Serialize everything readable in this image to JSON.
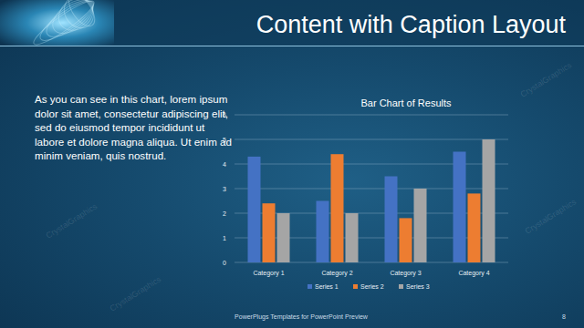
{
  "slide": {
    "title": "Content with Caption Layout",
    "caption": "As you can see in this chart, lorem ipsum dolor sit amet, consectetur adipiscing elit, sed do eiusmod tempor incididunt ut labore et dolore magna aliqua. Ut enim ad minim veniam, quis nostrud.",
    "footer": "PowerPlugs Templates for PowerPoint Preview",
    "page": 8,
    "watermark": "CrystalGraphics"
  },
  "chart_data": {
    "type": "bar",
    "title": "Bar Chart of Results",
    "categories": [
      "Category 1",
      "Category 2",
      "Category 3",
      "Category 4"
    ],
    "series": [
      {
        "name": "Series 1",
        "color": "#4472c4",
        "values": [
          4.3,
          2.5,
          3.5,
          4.5
        ]
      },
      {
        "name": "Series 2",
        "color": "#ed7d31",
        "values": [
          2.4,
          4.4,
          1.8,
          2.8
        ]
      },
      {
        "name": "Series 3",
        "color": "#a5a5a5",
        "values": [
          2,
          2,
          3,
          5
        ]
      }
    ],
    "ylim": [
      0,
      6
    ],
    "yticks": [
      0,
      1,
      2,
      3,
      4,
      5,
      6
    ],
    "grid": true,
    "legend": "bottom"
  }
}
